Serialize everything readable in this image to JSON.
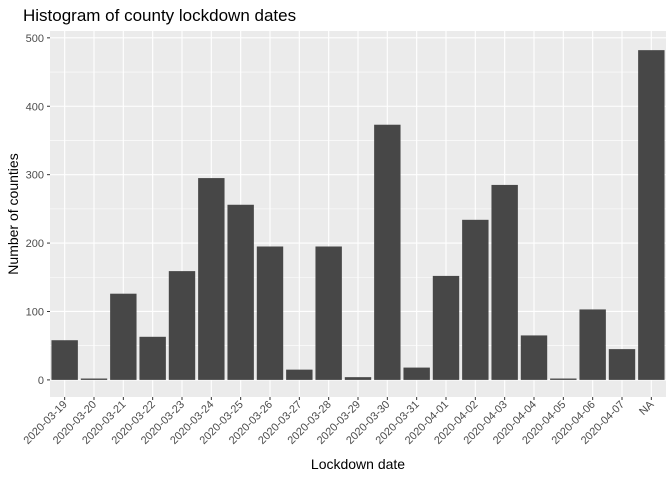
{
  "chart_data": {
    "type": "bar",
    "title": "Histogram of county lockdown dates",
    "xlabel": "Lockdown date",
    "ylabel": "Number of counties",
    "ylim": [
      -25,
      510
    ],
    "yticks": [
      0,
      100,
      200,
      300,
      400,
      500
    ],
    "grid": true,
    "colors": {
      "panel": "#EBEBEB",
      "grid": "#FFFFFF",
      "bar": "#474747"
    },
    "categories": [
      "2020-03-19",
      "2020-03-20",
      "2020-03-21",
      "2020-03-22",
      "2020-03-23",
      "2020-03-24",
      "2020-03-25",
      "2020-03-26",
      "2020-03-27",
      "2020-03-28",
      "2020-03-29",
      "2020-03-30",
      "2020-03-31",
      "2020-04-01",
      "2020-04-02",
      "2020-04-03",
      "2020-04-04",
      "2020-04-05",
      "2020-04-06",
      "2020-04-07",
      "NA"
    ],
    "values": [
      58,
      2,
      126,
      63,
      159,
      295,
      256,
      195,
      15,
      195,
      4,
      373,
      18,
      152,
      234,
      285,
      65,
      2,
      103,
      45,
      482
    ]
  }
}
